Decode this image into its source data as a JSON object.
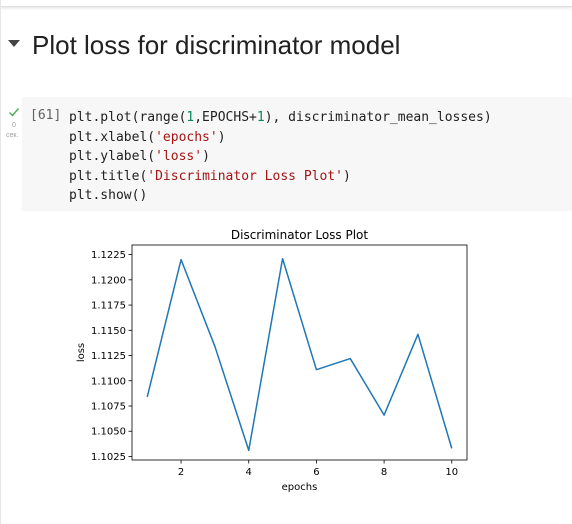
{
  "section": {
    "title": "Plot loss for discriminator model"
  },
  "cell": {
    "exec_count": "[61]",
    "run_time": "0",
    "run_unit": "сек.",
    "code": [
      [
        {
          "t": "plt.plot(range(",
          "c": ""
        },
        {
          "t": "1",
          "c": "num"
        },
        {
          "t": ",EPOCHS+",
          "c": ""
        },
        {
          "t": "1",
          "c": "num"
        },
        {
          "t": "), discriminator_mean_losses)",
          "c": ""
        }
      ],
      [
        {
          "t": "plt.xlabel(",
          "c": ""
        },
        {
          "t": "'epochs'",
          "c": "str"
        },
        {
          "t": ")",
          "c": ""
        }
      ],
      [
        {
          "t": "plt.ylabel(",
          "c": ""
        },
        {
          "t": "'loss'",
          "c": "str"
        },
        {
          "t": ")",
          "c": ""
        }
      ],
      [
        {
          "t": "plt.title(",
          "c": ""
        },
        {
          "t": "'Discriminator Loss Plot'",
          "c": "str"
        },
        {
          "t": ")",
          "c": ""
        }
      ],
      [
        {
          "t": "plt.show()",
          "c": ""
        }
      ]
    ]
  },
  "colors": {
    "line": "#1f77b4",
    "check": "#4caf50"
  },
  "chart_data": {
    "type": "line",
    "title": "Discriminator Loss Plot",
    "xlabel": "epochs",
    "ylabel": "loss",
    "x": [
      1,
      2,
      3,
      4,
      5,
      6,
      7,
      8,
      9,
      10
    ],
    "series": [
      {
        "values": [
          1.1084,
          1.122,
          1.1134,
          1.1031,
          1.1221,
          1.1111,
          1.1122,
          1.1066,
          1.1146,
          1.1033
        ]
      }
    ],
    "xticks": [
      2,
      4,
      6,
      8,
      10
    ],
    "yticks": [
      1.1025,
      1.105,
      1.1075,
      1.11,
      1.1125,
      1.115,
      1.1175,
      1.12,
      1.1225
    ],
    "ytick_labels": [
      "1.1025",
      "1.1050",
      "1.1075",
      "1.1100",
      "1.1125",
      "1.1150",
      "1.1175",
      "1.1200",
      "1.1225"
    ],
    "xlim": [
      0.55,
      10.45
    ],
    "ylim": [
      1.10215,
      1.12345
    ],
    "grid": false
  }
}
